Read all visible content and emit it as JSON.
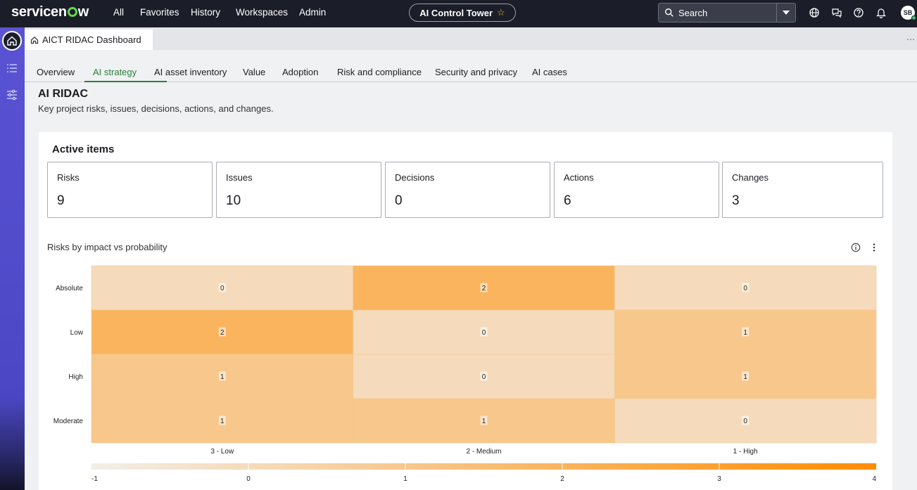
{
  "brand": {
    "name_pre": "servicen",
    "name_post": "w"
  },
  "nav": {
    "items": [
      "All",
      "Favorites",
      "History",
      "Workspaces",
      "Admin"
    ]
  },
  "workspace_pill": {
    "label": "AI Control Tower"
  },
  "search": {
    "placeholder": "Search"
  },
  "user": {
    "initials": "SB"
  },
  "doc_tab": {
    "label": "AICT RIDAC Dashboard"
  },
  "tabs": [
    "Overview",
    "AI strategy",
    "AI asset inventory",
    "Value",
    "Adoption",
    "Risk and compliance",
    "Security and privacy",
    "AI cases"
  ],
  "active_tab": "AI strategy",
  "page": {
    "title": "AI RIDAC",
    "subtitle": "Key project risks, issues, decisions, actions, and changes."
  },
  "active_items": {
    "title": "Active items",
    "kpis": [
      {
        "label": "Risks",
        "value": "9"
      },
      {
        "label": "Issues",
        "value": "10"
      },
      {
        "label": "Decisions",
        "value": "0"
      },
      {
        "label": "Actions",
        "value": "6"
      },
      {
        "label": "Changes",
        "value": "3"
      }
    ]
  },
  "chart": {
    "title": "Risks by impact vs probability"
  },
  "chart_data": {
    "type": "heatmap",
    "title": "Risks by impact vs probability",
    "x_categories": [
      "3 - Low",
      "2 - Medium",
      "1 - High"
    ],
    "y_categories": [
      "Absolute",
      "Low",
      "High",
      "Moderate"
    ],
    "values": [
      [
        0,
        2,
        0
      ],
      [
        2,
        0,
        1
      ],
      [
        1,
        0,
        1
      ],
      [
        1,
        1,
        0
      ]
    ],
    "color_scale": {
      "min": -1,
      "max": 4,
      "ticks": [
        -1,
        0,
        1,
        2,
        3,
        4
      ],
      "low_color": "#f2efea",
      "high_color": "#ff8c00"
    }
  },
  "colors": {
    "accent": "#2b7d3a",
    "topbar": "#1b1d29",
    "rail": "#5a53d4"
  }
}
